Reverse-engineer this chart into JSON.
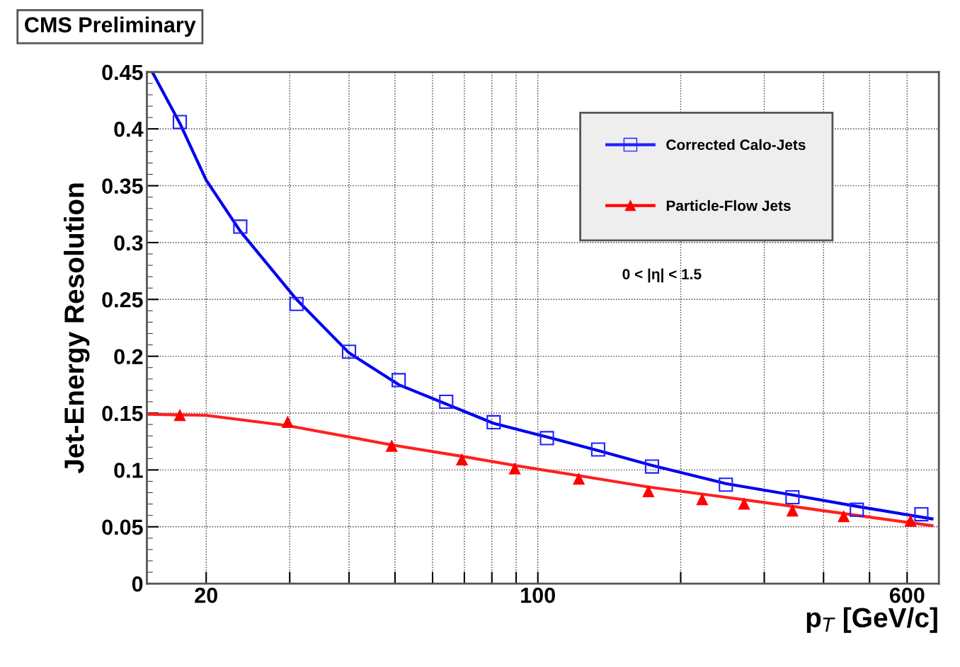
{
  "chart_data": {
    "type": "scatter",
    "xlabel": "p$_{T}$ [GeV/c]",
    "ylabel": "Jet-Energy Resolution",
    "annotations": [
      "CMS Preliminary",
      "0 < |η| < 1.5"
    ],
    "log": "x",
    "grid": true,
    "legend": "top right",
    "xlim": [
      15,
      700
    ],
    "xticks": [
      {
        "value": 20,
        "label": "20"
      },
      {
        "value": 30,
        "label": null
      },
      {
        "value": 40,
        "label": null
      },
      {
        "value": 50,
        "label": null
      },
      {
        "value": 60,
        "label": null
      },
      {
        "value": 70,
        "label": null
      },
      {
        "value": 80,
        "label": null
      },
      {
        "value": 90,
        "label": null
      },
      {
        "value": 100,
        "label": "100"
      },
      {
        "value": 200,
        "label": null
      },
      {
        "value": 300,
        "label": null
      },
      {
        "value": 400,
        "label": null
      },
      {
        "value": 500,
        "label": null
      },
      {
        "value": 600,
        "label": "600"
      }
    ],
    "ylim": [
      0,
      0.45
    ],
    "yticks": [
      0,
      0.05,
      0.1,
      0.15,
      0.2,
      0.25,
      0.3,
      0.35,
      0.4,
      0.45
    ],
    "series": [
      {
        "name": "Corrected Calo-Jets",
        "marker": "square",
        "color": "#2020ff",
        "x": [
          17.6,
          23.6,
          31.0,
          40.0,
          50.9,
          64.1,
          80.7,
          104.5,
          134,
          174,
          249,
          344,
          470,
          643
        ],
        "values": [
          0.406,
          0.314,
          0.246,
          0.204,
          0.179,
          0.16,
          0.142,
          0.128,
          0.118,
          0.103,
          0.087,
          0.076,
          0.065,
          0.061
        ]
      },
      {
        "name": "Particle-Flow Jets",
        "marker": "triangle",
        "color": "#ff0000",
        "x": [
          17.6,
          29.7,
          49.2,
          69.2,
          89.4,
          122,
          171,
          222,
          272,
          344,
          441,
          610
        ],
        "values": [
          0.148,
          0.142,
          0.121,
          0.109,
          0.101,
          0.092,
          0.081,
          0.074,
          0.07,
          0.064,
          0.059,
          0.055
        ]
      },
      {
        "type": "line",
        "color": "#0000ee",
        "x": [
          15.4,
          17.6,
          20,
          23.6,
          31,
          40,
          50.9,
          80.7,
          104.5,
          134,
          174,
          249,
          344,
          470,
          677
        ],
        "values": [
          0.45,
          0.405,
          0.355,
          0.31,
          0.25,
          0.203,
          0.175,
          0.141,
          0.129,
          0.117,
          0.104,
          0.088,
          0.078,
          0.068,
          0.057
        ]
      },
      {
        "type": "line",
        "color": "#ff2020",
        "x": [
          15,
          20,
          29.7,
          49.2,
          69.2,
          89.4,
          122,
          171,
          249,
          344,
          470,
          677
        ],
        "values": [
          0.149,
          0.148,
          0.139,
          0.122,
          0.112,
          0.104,
          0.095,
          0.085,
          0.076,
          0.068,
          0.06,
          0.051
        ]
      }
    ]
  }
}
